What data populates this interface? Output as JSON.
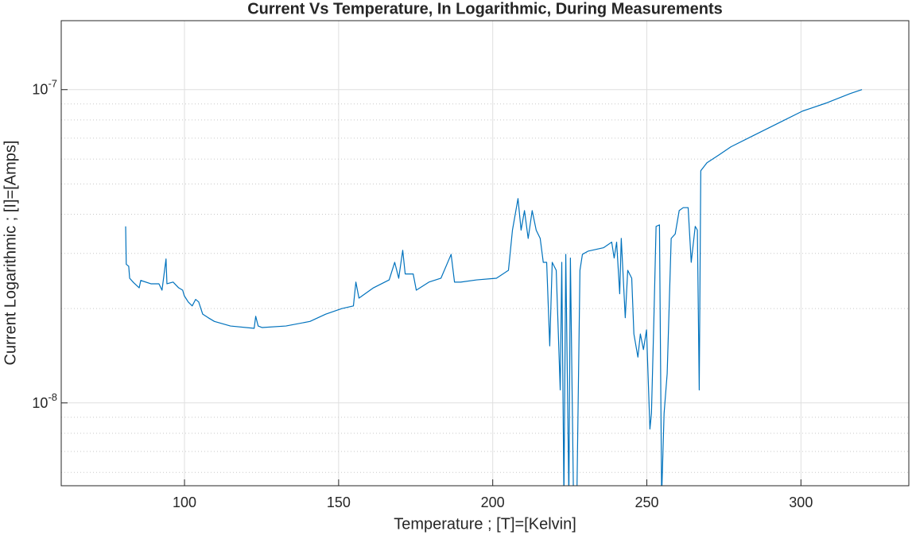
{
  "chart_data": {
    "type": "line",
    "title": "Current Vs Temperature, In Logarithmic, During Measurements",
    "x_label": "Temperature ; [T]=[Kelvin]",
    "y_label": "Current Logarithmic ; [I]=[Amps]",
    "color": "#0072bd",
    "y_scale": "log",
    "grid": true,
    "minor_grid": true,
    "xlim": [
      60,
      335
    ],
    "xticks": [
      100,
      150,
      200,
      250,
      300
    ],
    "ylim": [
      5.44e-09,
      1.66e-07
    ],
    "yticks": [
      {
        "value": 1e-08,
        "label": "10",
        "exponent": "-8"
      },
      {
        "value": 1e-07,
        "label": "10",
        "exponent": "-7"
      }
    ],
    "yminorticks": [
      6e-09,
      7e-09,
      8e-09,
      9e-09,
      2e-08,
      3e-08,
      4e-08,
      5e-08,
      6e-08,
      7e-08,
      8e-08,
      9e-08
    ],
    "x": [
      80.9,
      81.1,
      81.9,
      82.2,
      83.5,
      85.3,
      85.8,
      89.1,
      91.7,
      92.7,
      94.0,
      94.3,
      96.3,
      98.1,
      99.4,
      99.9,
      101.2,
      102.5,
      103.6,
      104.6,
      105.9,
      107.7,
      109.7,
      114.9,
      122.6,
      123.1,
      123.9,
      125.2,
      132.9,
      140.7,
      145.8,
      151.0,
      154.8,
      155.6,
      156.6,
      161.3,
      166.4,
      168.2,
      169.5,
      170.8,
      171.6,
      174.2,
      175.2,
      179.3,
      183.2,
      186.5,
      187.6,
      189.6,
      194.8,
      201.2,
      205.1,
      206.4,
      208.2,
      209.2,
      210.3,
      211.5,
      212.8,
      214.1,
      215.4,
      216.4,
      217.5,
      218.5,
      219.3,
      220.6,
      221.9,
      222.4,
      223.1,
      223.7,
      224.7,
      225.2,
      226.2,
      227.3,
      228.3,
      229.1,
      230.9,
      236.0,
      238.6,
      239.4,
      240.2,
      241.2,
      241.7,
      243.0,
      243.8,
      245.1,
      245.8,
      247.1,
      247.9,
      248.9,
      249.9,
      251.0,
      251.5,
      252.3,
      253.0,
      254.1,
      254.8,
      255.6,
      256.6,
      257.9,
      259.2,
      260.5,
      261.8,
      263.4,
      264.4,
      265.7,
      266.4,
      267.0,
      267.5,
      269.5,
      273.4,
      277.3,
      285.0,
      292.7,
      300.5,
      308.2,
      315.9,
      319.8
    ],
    "values": [
      3.66e-08,
      2.77e-08,
      2.73e-08,
      2.5e-08,
      2.42e-08,
      2.33e-08,
      2.46e-08,
      2.4e-08,
      2.4e-08,
      2.29e-08,
      2.88e-08,
      2.4e-08,
      2.43e-08,
      2.33e-08,
      2.29e-08,
      2.2e-08,
      2.1e-08,
      2.04e-08,
      2.14e-08,
      2.1e-08,
      1.92e-08,
      1.87e-08,
      1.82e-08,
      1.76e-08,
      1.73e-08,
      1.89e-08,
      1.76e-08,
      1.74e-08,
      1.76e-08,
      1.82e-08,
      1.92e-08,
      2e-08,
      2.04e-08,
      2.43e-08,
      2.16e-08,
      2.33e-08,
      2.47e-08,
      2.81e-08,
      2.5e-08,
      3.07e-08,
      2.58e-08,
      2.58e-08,
      2.29e-08,
      2.43e-08,
      2.5e-08,
      2.98e-08,
      2.43e-08,
      2.43e-08,
      2.47e-08,
      2.5e-08,
      2.65e-08,
      3.56e-08,
      4.49e-08,
      3.56e-08,
      4.11e-08,
      3.35e-08,
      4.11e-08,
      3.56e-08,
      3.35e-08,
      2.81e-08,
      2.81e-08,
      1.52e-08,
      2.81e-08,
      2.65e-08,
      1.1e-08,
      2.81e-08,
      5e-09,
      2.98e-08,
      5e-09,
      2.9e-08,
      5e-09,
      5e-09,
      2.65e-08,
      2.98e-08,
      3.05e-08,
      3.13e-08,
      3.26e-08,
      2.9e-08,
      3.26e-08,
      2.23e-08,
      3.35e-08,
      1.87e-08,
      2.65e-08,
      2.5e-08,
      1.66e-08,
      1.4e-08,
      1.66e-08,
      1.48e-08,
      1.71e-08,
      8.25e-09,
      9.27e-09,
      1.87e-08,
      3.66e-08,
      3.7e-08,
      5e-09,
      9.27e-09,
      1.24e-08,
      3.35e-08,
      3.46e-08,
      4.11e-08,
      4.2e-08,
      4.2e-08,
      2.81e-08,
      3.66e-08,
      3.56e-08,
      1.1e-08,
      5.51e-08,
      5.84e-08,
      6.19e-08,
      6.57e-08,
      7.17e-08,
      7.82e-08,
      8.54e-08,
      9.06e-08,
      9.71e-08,
      1e-07
    ]
  }
}
